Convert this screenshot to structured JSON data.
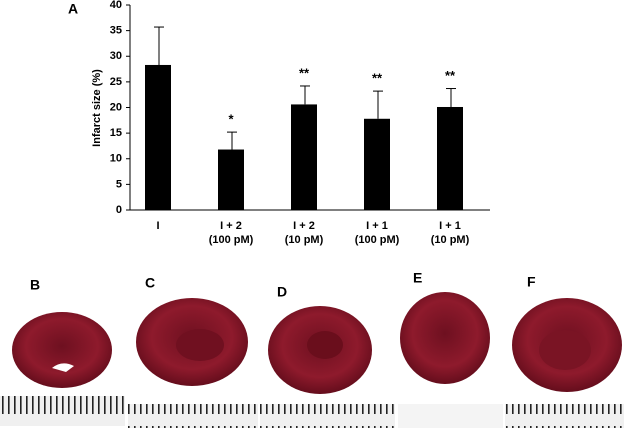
{
  "chart_data": {
    "type": "bar",
    "panel_label": "A",
    "ylabel": "Infarct size (%)",
    "categories": [
      [
        "I"
      ],
      [
        "I + 2",
        "(100 pM)"
      ],
      [
        "I + 2",
        "(10 pM)"
      ],
      [
        "I + 1",
        "(100 pM)"
      ],
      [
        "I + 1",
        "(10 pM)"
      ]
    ],
    "values": [
      28.3,
      11.8,
      20.6,
      17.8,
      20.1
    ],
    "errors": [
      7.4,
      3.4,
      3.6,
      5.4,
      3.6
    ],
    "significance": [
      null,
      "*",
      "**",
      "**",
      "**"
    ],
    "color": "#000000",
    "ylim": [
      0,
      40
    ],
    "yticks": [
      0,
      5,
      10,
      15,
      20,
      25,
      30,
      35,
      40
    ],
    "grid": false
  },
  "photos": {
    "labels": [
      "B",
      "C",
      "D",
      "E",
      "F"
    ]
  }
}
